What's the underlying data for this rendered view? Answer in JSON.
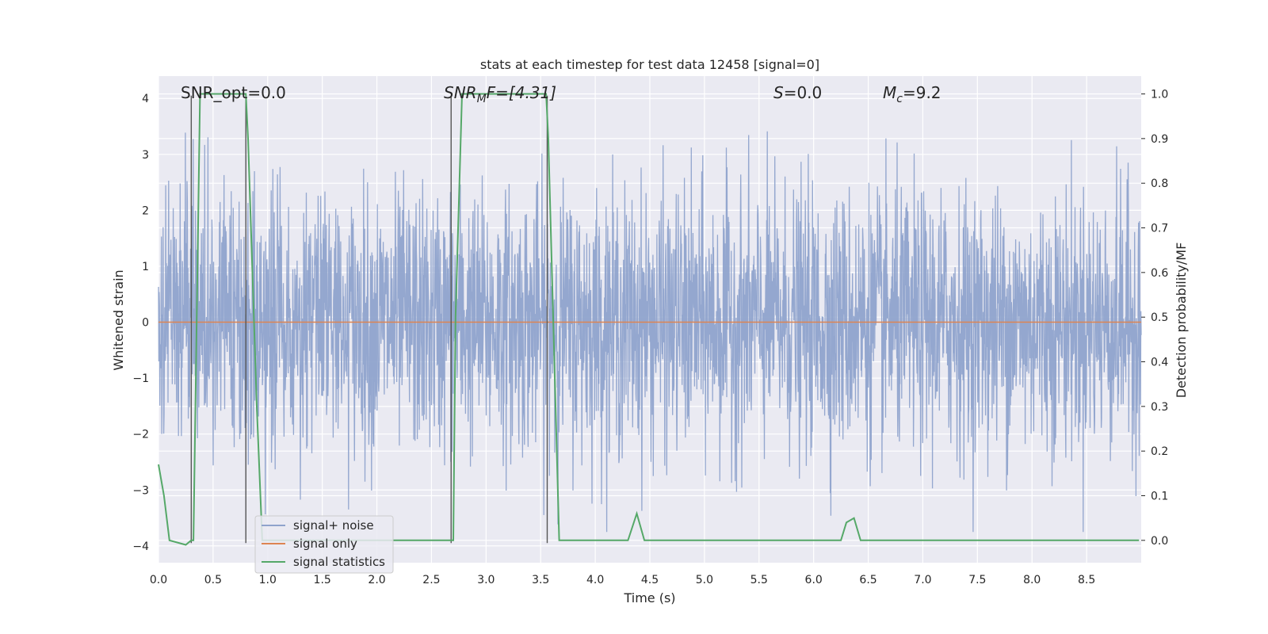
{
  "chart_data": {
    "type": "line",
    "title": "stats at each timestep for test data 12458 [signal=0]",
    "xlabel": "Time (s)",
    "ylabel_left": "Whitened strain",
    "ylabel_right": "Detection probability/MF",
    "xlim": [
      0.0,
      9.0
    ],
    "ylim_left": [
      -4.3,
      4.4
    ],
    "ylim_right": [
      -0.05,
      1.04
    ],
    "x_ticks": [
      "0.0",
      "0.5",
      "1.0",
      "1.5",
      "2.0",
      "2.5",
      "3.0",
      "3.5",
      "4.0",
      "4.5",
      "5.0",
      "5.5",
      "6.0",
      "6.5",
      "7.0",
      "7.5",
      "8.0",
      "8.5"
    ],
    "y_ticks_left": [
      "4",
      "3",
      "2",
      "1",
      "0",
      "−1",
      "−2",
      "−3",
      "−4"
    ],
    "y_ticks_right": [
      "1.0",
      "0.9",
      "0.8",
      "0.7",
      "0.6",
      "0.5",
      "0.4",
      "0.3",
      "0.2",
      "0.1",
      "0.0"
    ],
    "grid": true,
    "legend_position": "lower-left",
    "annotations": {
      "snr_opt": "SNR_opt=0.0",
      "snr_mf_base": "SNR",
      "snr_mf_sub": "M",
      "snr_mf_rest": "F=[4.31]",
      "s_var": "S",
      "s_rest": "=0.0",
      "mc_var": "M",
      "mc_sub": "c",
      "mc_rest": "=9.2"
    },
    "series": [
      {
        "name": "signal+ noise",
        "color": "#8fa3cc",
        "description_values": "noise band",
        "noise_amplitude": 1.6
      },
      {
        "name": "signal only",
        "color": "#dd8452",
        "x": [
          0.0,
          9.0
        ],
        "y": [
          0.0,
          0.0
        ]
      },
      {
        "name": "signal statistics",
        "color": "#55a868",
        "x": [
          0.0,
          0.05,
          0.1,
          0.25,
          0.3,
          0.32,
          0.38,
          0.5,
          0.8,
          0.82,
          0.9,
          0.95,
          2.0,
          2.7,
          2.72,
          2.78,
          3.0,
          3.55,
          3.57,
          3.67,
          4.0,
          4.3,
          4.38,
          4.45,
          5.0,
          6.0,
          6.25,
          6.3,
          6.37,
          6.43,
          7.0,
          8.0,
          8.98
        ],
        "y": [
          0.17,
          0.1,
          0.0,
          -0.01,
          0.0,
          0.0,
          1.0,
          1.0,
          1.0,
          0.9,
          0.3,
          0.0,
          0.0,
          0.0,
          0.5,
          1.0,
          1.0,
          1.0,
          0.9,
          0.0,
          0.0,
          0.0,
          0.06,
          0.0,
          0.0,
          0.0,
          0.0,
          0.04,
          0.05,
          0.0,
          0.0,
          0.0,
          0.0
        ]
      }
    ],
    "vertical_lines": [
      0.3,
      0.8,
      2.68,
      3.56
    ]
  }
}
